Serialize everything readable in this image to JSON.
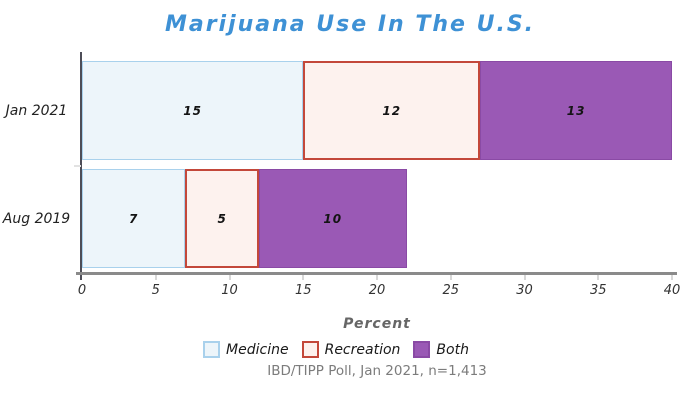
{
  "chart_data": {
    "type": "bar",
    "orientation": "horizontal",
    "stacked": true,
    "title": "Marijuana Use In The U.S.",
    "xlabel": "Percent",
    "xlim": [
      0,
      40
    ],
    "xticks": [
      0,
      5,
      10,
      15,
      20,
      25,
      30,
      35,
      40
    ],
    "grid": false,
    "legend_position": "bottom",
    "categories": [
      "Jan 2021",
      "Aug 2019"
    ],
    "series": [
      {
        "name": "Medicine",
        "values": [
          15,
          7
        ],
        "fill": "#edf5fa",
        "border": "#a9d1ec"
      },
      {
        "name": "Recreation",
        "values": [
          12,
          5
        ],
        "fill": "#fdf2ee",
        "border": "#c3483a"
      },
      {
        "name": "Both",
        "values": [
          13,
          10
        ],
        "fill": "#9a59b5",
        "border": "#8a4aa5"
      }
    ],
    "source": "IBD/TIPP Poll, Jan 2021, n=1,413"
  },
  "colors": {
    "title": "#3e91d5",
    "axis_line": "#8a8a8a",
    "spine": "#4d4d57",
    "tick_text": "#333333",
    "xlabel_text": "#666666",
    "source_text": "#7c7c7c"
  }
}
